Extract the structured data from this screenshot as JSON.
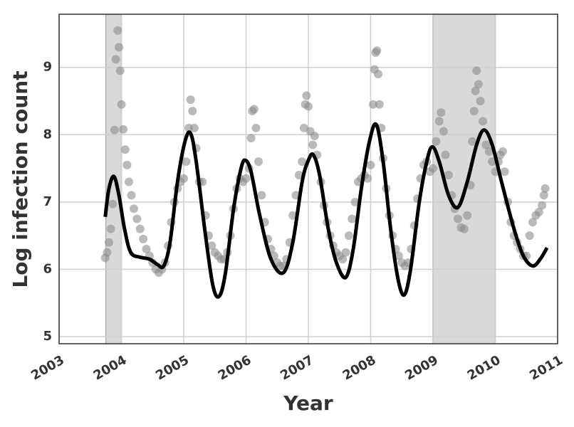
{
  "chart_data": {
    "type": "scatter",
    "x_label": "Year",
    "y_label": "Log infection count",
    "xlim": [
      2003,
      2011
    ],
    "ylim": [
      4.894,
      9.79
    ],
    "xticks": [
      2003,
      2004,
      2005,
      2006,
      2007,
      2008,
      2009,
      2010,
      2011
    ],
    "yticks": [
      5,
      6,
      7,
      8,
      9
    ],
    "grid": true,
    "shaded_regions": [
      {
        "x": [
          2003.75,
          2004.0
        ],
        "color": "#d9d9d9"
      },
      {
        "x": [
          2009.0,
          2010.0
        ],
        "color": "#d9d9d9"
      }
    ],
    "series": [
      {
        "style": "markers",
        "color": "#8c8c8c",
        "x": [
          2003.74,
          2003.77,
          2003.8,
          2003.83,
          2003.86,
          2003.89,
          2003.91,
          2003.94,
          2003.96,
          2003.98,
          2004.0,
          2004.03,
          2004.06,
          2004.09,
          2004.12,
          2004.16,
          2004.2,
          2004.25,
          2004.3,
          2004.35,
          2004.4,
          2004.45,
          2004.5,
          2004.55,
          2004.6,
          2004.65,
          2004.7,
          2004.75,
          2004.8,
          2004.85,
          2004.9,
          2004.95,
          2005.0,
          2005.04,
          2005.08,
          2005.11,
          2005.14,
          2005.17,
          2005.2,
          2005.25,
          2005.3,
          2005.35,
          2005.4,
          2005.45,
          2005.5,
          2005.55,
          2005.6,
          2005.65,
          2005.7,
          2005.75,
          2005.8,
          2005.85,
          2005.9,
          2005.95,
          2006.0,
          2006.05,
          2006.08,
          2006.1,
          2006.13,
          2006.16,
          2006.2,
          2006.25,
          2006.3,
          2006.35,
          2006.4,
          2006.45,
          2006.5,
          2006.55,
          2006.6,
          2006.65,
          2006.7,
          2006.75,
          2006.8,
          2006.85,
          2006.9,
          2006.93,
          2006.95,
          2006.97,
          2007.0,
          2007.03,
          2007.07,
          2007.1,
          2007.14,
          2007.2,
          2007.25,
          2007.3,
          2007.35,
          2007.4,
          2007.45,
          2007.5,
          2007.55,
          2007.6,
          2007.65,
          2007.7,
          2007.75,
          2007.8,
          2007.85,
          2007.9,
          2007.95,
          2008.0,
          2008.04,
          2008.06,
          2008.08,
          2008.1,
          2008.12,
          2008.14,
          2008.17,
          2008.2,
          2008.25,
          2008.3,
          2008.35,
          2008.4,
          2008.45,
          2008.5,
          2008.55,
          2008.6,
          2008.65,
          2008.7,
          2008.75,
          2008.8,
          2008.85,
          2008.9,
          2008.95,
          2009.0,
          2009.05,
          2009.1,
          2009.13,
          2009.17,
          2009.2,
          2009.25,
          2009.3,
          2009.35,
          2009.4,
          2009.45,
          2009.5,
          2009.55,
          2009.6,
          2009.63,
          2009.66,
          2009.68,
          2009.7,
          2009.73,
          2009.76,
          2009.8,
          2009.85,
          2009.9,
          2009.95,
          2010.0,
          2010.05,
          2010.08,
          2010.12,
          2010.15,
          2010.2,
          2010.25,
          2010.3,
          2010.35,
          2010.4,
          2010.45,
          2010.5,
          2010.55,
          2010.6,
          2010.65,
          2010.7,
          2010.75,
          2010.78,
          2010.8
        ],
        "values": [
          6.17,
          6.25,
          6.4,
          6.6,
          6.97,
          8.07,
          9.12,
          9.55,
          9.3,
          8.95,
          8.45,
          8.08,
          7.78,
          7.55,
          7.3,
          7.1,
          6.9,
          6.75,
          6.6,
          6.45,
          6.3,
          6.2,
          6.1,
          6.0,
          5.95,
          6.0,
          6.1,
          6.35,
          6.7,
          7.0,
          7.2,
          7.3,
          7.35,
          7.6,
          8.1,
          8.52,
          8.35,
          8.1,
          7.8,
          7.3,
          7.3,
          6.8,
          6.5,
          6.35,
          6.25,
          6.2,
          6.15,
          6.15,
          6.25,
          6.5,
          6.9,
          7.2,
          7.35,
          7.3,
          7.35,
          7.5,
          7.95,
          8.35,
          8.38,
          8.1,
          7.6,
          7.1,
          6.7,
          6.45,
          6.3,
          6.2,
          6.1,
          6.05,
          6.05,
          6.15,
          6.4,
          6.8,
          7.1,
          7.4,
          7.6,
          8.1,
          8.45,
          8.58,
          8.42,
          8.05,
          7.85,
          7.98,
          7.7,
          7.3,
          6.95,
          6.7,
          6.5,
          6.35,
          6.25,
          6.2,
          6.15,
          6.25,
          6.5,
          6.75,
          7.0,
          7.3,
          7.35,
          7.4,
          7.35,
          7.55,
          8.45,
          8.97,
          9.22,
          9.25,
          8.9,
          8.45,
          8.1,
          7.65,
          7.2,
          6.8,
          6.5,
          6.3,
          6.2,
          6.1,
          6.05,
          6.1,
          6.3,
          6.65,
          7.05,
          7.35,
          7.55,
          7.6,
          7.45,
          7.5,
          7.9,
          8.2,
          8.33,
          8.05,
          7.7,
          7.4,
          7.1,
          6.9,
          6.75,
          6.62,
          6.6,
          6.8,
          7.25,
          7.9,
          8.35,
          8.65,
          8.95,
          8.75,
          8.5,
          8.2,
          7.85,
          7.75,
          7.6,
          7.45,
          7.6,
          7.7,
          7.75,
          7.45,
          7.0,
          6.7,
          6.5,
          6.4,
          6.3,
          6.2,
          6.2,
          6.5,
          6.7,
          6.8,
          6.85,
          6.95,
          7.1,
          7.2
        ]
      },
      {
        "style": "line",
        "color": "#000000",
        "x": [
          2003.74,
          2003.8,
          2003.88,
          2003.96,
          2004.05,
          2004.15,
          2004.3,
          2004.45,
          2004.58,
          2004.68,
          2004.78,
          2004.9,
          2005.02,
          2005.11,
          2005.2,
          2005.35,
          2005.47,
          2005.57,
          2005.67,
          2005.8,
          2005.92,
          2005.99,
          2006.08,
          2006.22,
          2006.4,
          2006.6,
          2006.75,
          2006.9,
          2007.0,
          2007.08,
          2007.18,
          2007.32,
          2007.45,
          2007.6,
          2007.72,
          2007.85,
          2007.98,
          2008.09,
          2008.2,
          2008.32,
          2008.44,
          2008.54,
          2008.64,
          2008.78,
          2008.9,
          2008.99,
          2009.1,
          2009.25,
          2009.4,
          2009.55,
          2009.7,
          2009.82,
          2009.95,
          2010.1,
          2010.3,
          2010.45,
          2010.6,
          2010.72,
          2010.83
        ],
        "values": [
          6.78,
          7.2,
          7.38,
          7.1,
          6.6,
          6.25,
          6.18,
          6.15,
          6.07,
          6.05,
          6.4,
          7.3,
          7.9,
          8.02,
          7.6,
          6.5,
          5.75,
          5.6,
          5.95,
          6.9,
          7.5,
          7.62,
          7.45,
          6.8,
          6.15,
          5.95,
          6.4,
          7.3,
          7.62,
          7.7,
          7.4,
          6.6,
          6.1,
          5.88,
          6.3,
          7.2,
          7.9,
          8.15,
          7.6,
          6.6,
          5.85,
          5.62,
          6.0,
          7.0,
          7.6,
          7.82,
          7.6,
          7.1,
          6.92,
          7.3,
          7.85,
          8.07,
          7.85,
          7.3,
          6.6,
          6.2,
          6.05,
          6.15,
          6.32
        ]
      }
    ]
  }
}
